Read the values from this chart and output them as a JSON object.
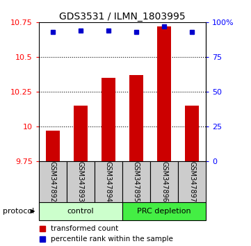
{
  "title": "GDS3531 / ILMN_1803995",
  "samples": [
    "GSM347892",
    "GSM347893",
    "GSM347894",
    "GSM347895",
    "GSM347896",
    "GSM347897"
  ],
  "red_values": [
    9.97,
    10.15,
    10.35,
    10.37,
    10.72,
    10.15
  ],
  "blue_values": [
    93,
    94,
    94,
    93,
    97,
    93
  ],
  "ylim_left": [
    9.75,
    10.75
  ],
  "ylim_right": [
    0,
    100
  ],
  "yticks_left": [
    9.75,
    10.0,
    10.25,
    10.5,
    10.75
  ],
  "yticks_right": [
    0,
    25,
    50,
    75,
    100
  ],
  "ytick_labels_left": [
    "9.75",
    "10",
    "10.25",
    "10.5",
    "10.75"
  ],
  "ytick_labels_right": [
    "0",
    "25",
    "50",
    "75",
    "100%"
  ],
  "grid_ticks": [
    10.0,
    10.25,
    10.5
  ],
  "control_label": "control",
  "prc_label": "PRC depletion",
  "protocol_label": "protocol",
  "legend_red": "transformed count",
  "legend_blue": "percentile rank within the sample",
  "bar_color": "#cc0000",
  "dot_color": "#0000cc",
  "control_bg": "#ccffcc",
  "prc_bg": "#44ee44",
  "sample_bg": "#cccccc",
  "bar_bottom": 9.75,
  "bar_width": 0.5,
  "n_control": 3,
  "n_prc": 3
}
